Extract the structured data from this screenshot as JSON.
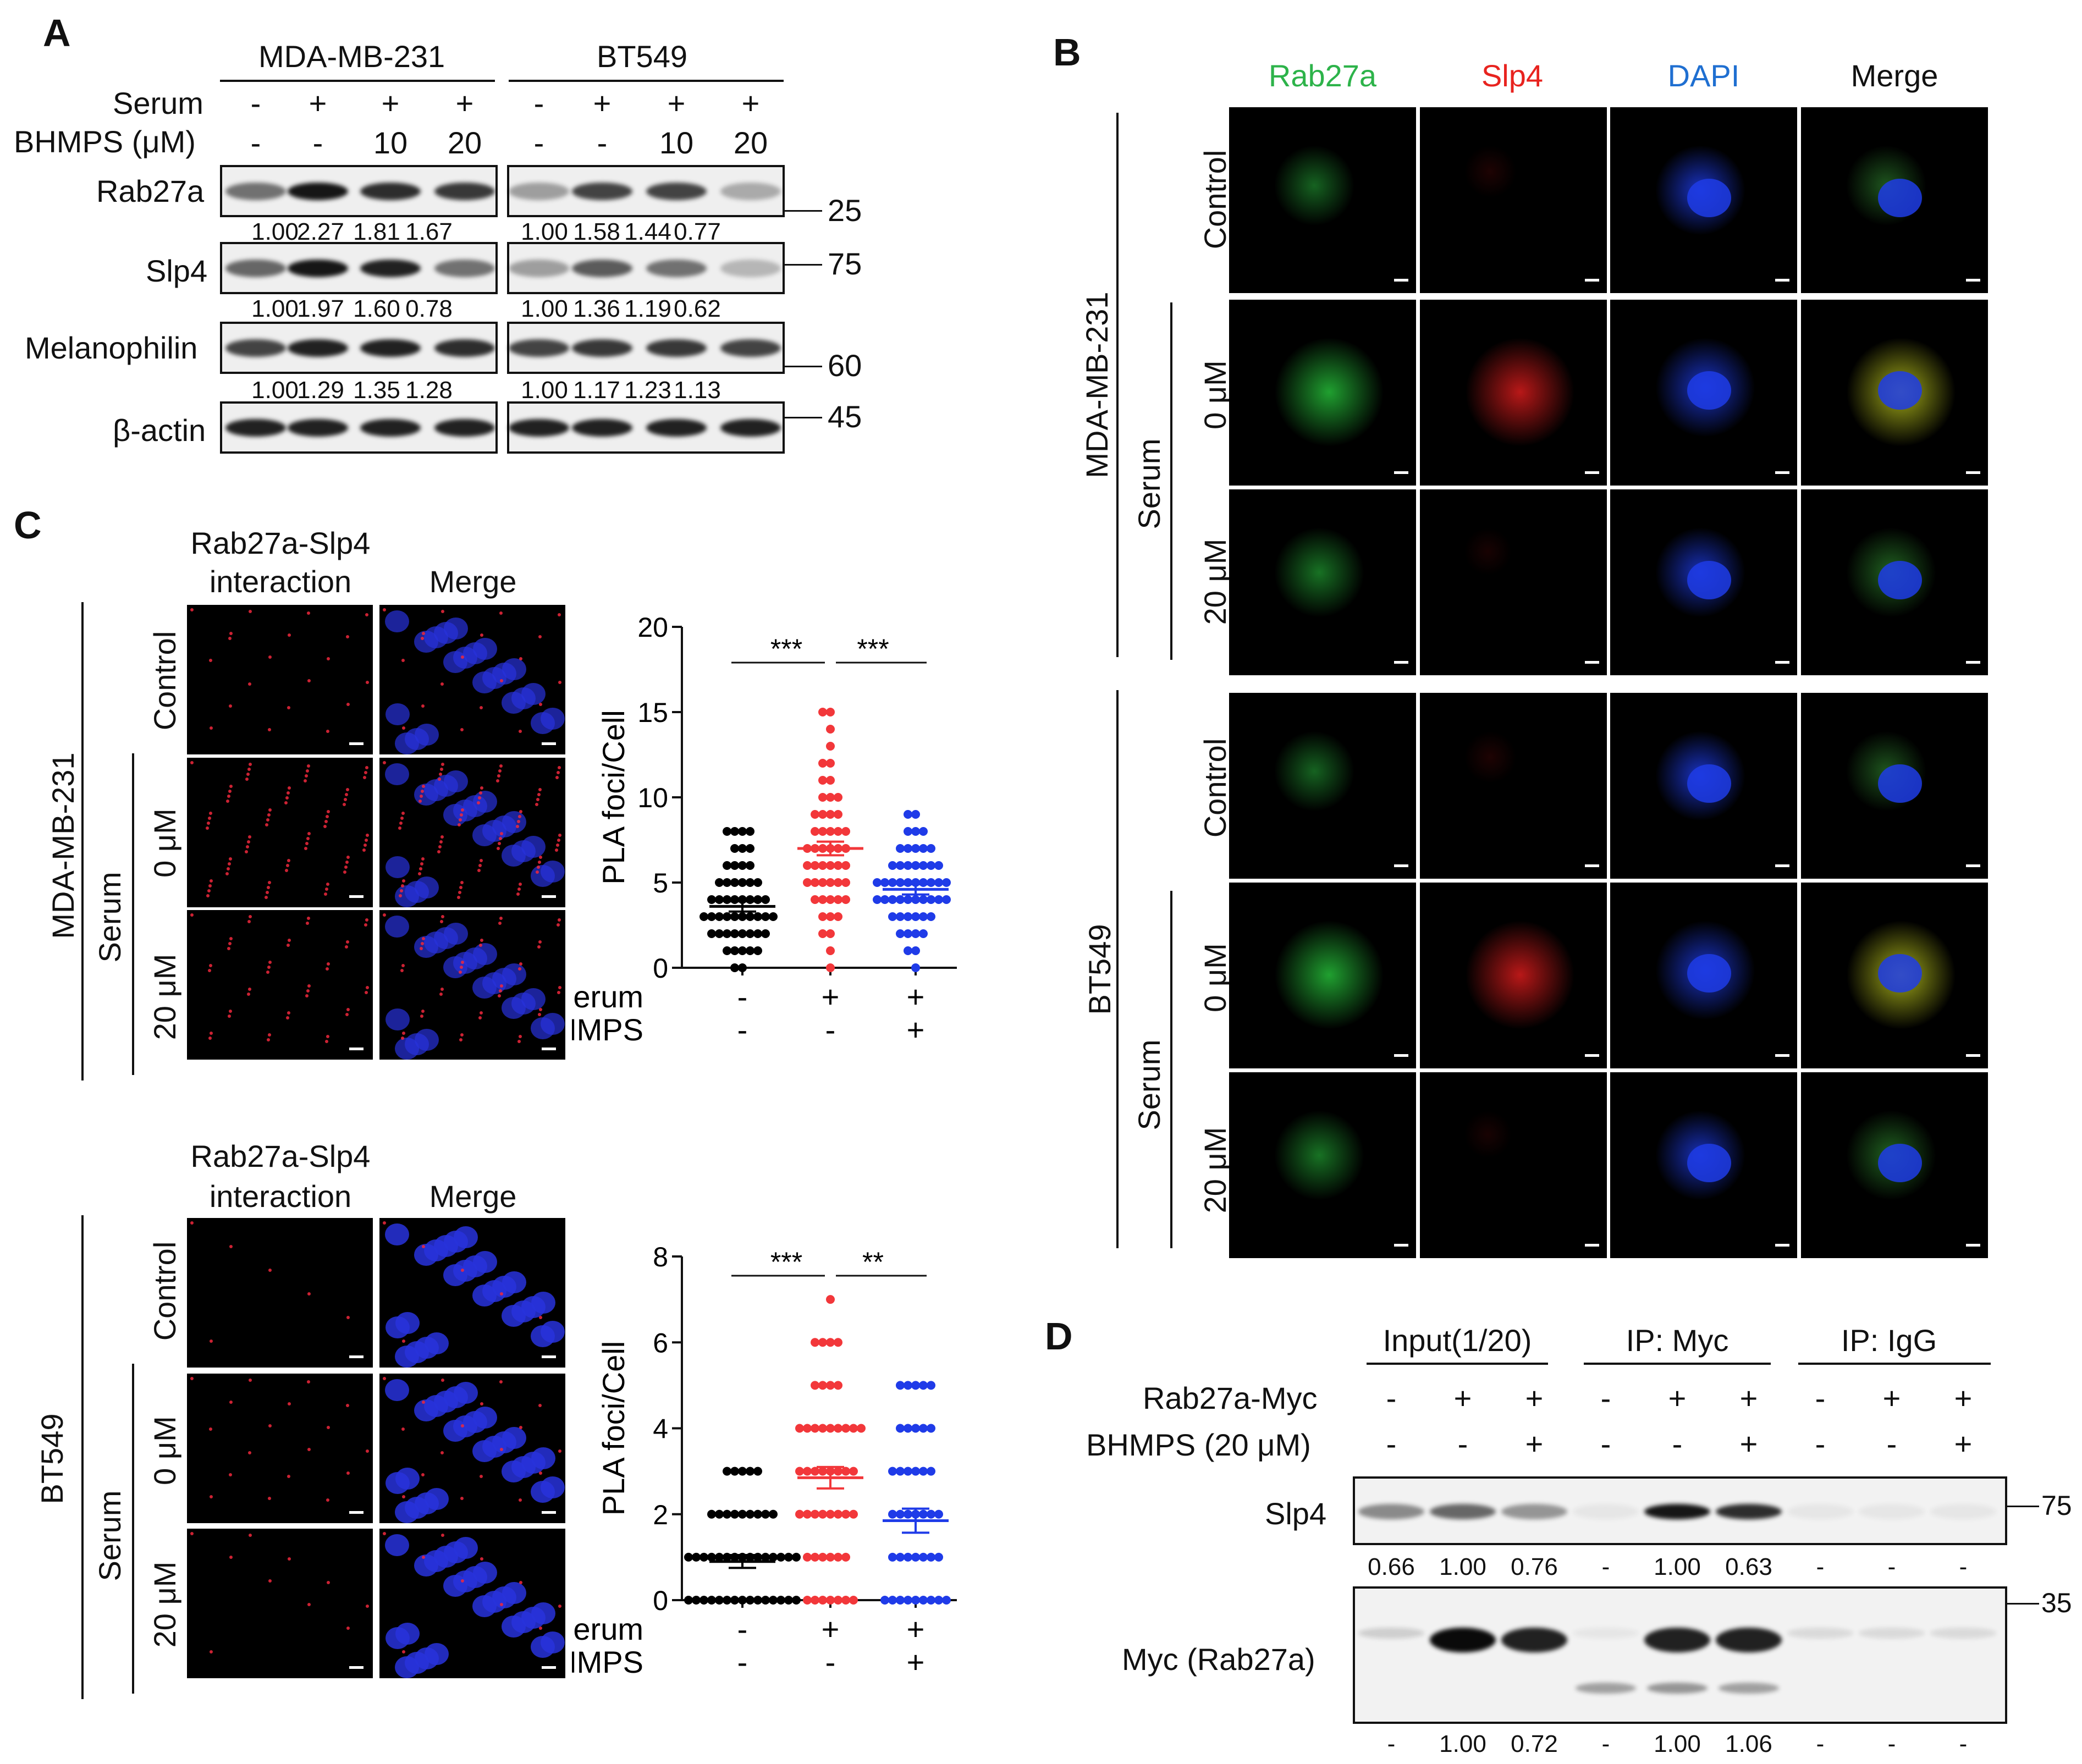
{
  "panelA": {
    "letter": "A",
    "cell_lines": [
      "MDA-MB-231",
      "BT549"
    ],
    "serum_label": "Serum",
    "bhmps_label": "BHMPS (μM)",
    "serum": [
      "-",
      "+",
      "+",
      "+",
      "-",
      "+",
      "+",
      "+"
    ],
    "bhmps": [
      "-",
      "-",
      "10",
      "20",
      "-",
      "-",
      "10",
      "20"
    ],
    "rows": [
      {
        "name": "Rab27a",
        "values": [
          "1.00",
          "2.27",
          "1.81",
          "1.67",
          "1.00",
          "1.58",
          "1.44",
          "0.77"
        ]
      },
      {
        "name": "Slp4",
        "values": [
          "1.00",
          "1.97",
          "1.60",
          "0.78",
          "1.00",
          "1.36",
          "1.19",
          "0.62"
        ]
      },
      {
        "name": "Melanophilin",
        "values": [
          "1.00",
          "1.29",
          "1.35",
          "1.28",
          "1.00",
          "1.17",
          "1.23",
          "1.13"
        ]
      },
      {
        "name": "β-actin",
        "values": []
      }
    ],
    "mw": [
      "25",
      "75",
      "60",
      "45"
    ]
  },
  "panelB": {
    "letter": "B",
    "columns": [
      "Rab27a",
      "Slp4",
      "DAPI",
      "Merge"
    ],
    "column_colors": [
      "#2db34a",
      "#e8231f",
      "#1f6fd1",
      "#111111"
    ],
    "cell_lines": [
      "MDA-MB-231",
      "BT549"
    ],
    "row_labels": [
      "Control",
      "0 μM",
      "20 μM"
    ],
    "serum_label": "Serum"
  },
  "panelC": {
    "letter": "C",
    "col1": "Rab27a-Slp4",
    "col1b": "interaction",
    "col2": "Merge",
    "cell_lines": [
      "MDA-MB-231",
      "BT549"
    ],
    "row_labels": [
      "Control",
      "0 μM",
      "20 μM"
    ],
    "serum_label": "Serum",
    "stat_top": [
      "***",
      "***"
    ],
    "stat_bottom": [
      "***",
      "**"
    ],
    "cond_labels": {
      "serum": "Serum",
      "bhmps": "BHMPS",
      "serum_vals": [
        "-",
        "+",
        "+"
      ],
      "bhmps_vals": [
        "-",
        "-",
        "+"
      ]
    }
  },
  "chart_data": [
    {
      "type": "scatter",
      "title": "",
      "ylabel": "PLA foci/Cell",
      "ylim": [
        0,
        20
      ],
      "yticks": [
        0,
        5,
        10,
        15,
        20
      ],
      "categories": [
        "Serum - / BHMPS -",
        "Serum + / BHMPS -",
        "Serum + / BHMPS +"
      ],
      "colors": [
        "#000000",
        "#f2373a",
        "#1f3be8"
      ],
      "means": [
        3.6,
        7.0,
        4.6
      ],
      "sem": [
        0.3,
        0.4,
        0.3
      ],
      "series": [
        {
          "values": [
            0,
            0,
            1,
            1,
            1,
            1,
            2,
            2,
            2,
            2,
            2,
            2,
            3,
            3,
            3,
            3,
            3,
            3,
            3,
            3,
            4,
            4,
            4,
            4,
            4,
            4,
            5,
            5,
            5,
            5,
            5,
            6,
            6,
            6,
            6,
            7,
            7,
            7,
            8,
            8,
            8,
            8,
            1,
            2,
            3,
            4,
            5,
            3,
            2,
            4
          ]
        },
        {
          "values": [
            0,
            1,
            2,
            2,
            3,
            3,
            3,
            4,
            4,
            4,
            4,
            5,
            5,
            5,
            5,
            5,
            6,
            6,
            6,
            6,
            6,
            7,
            7,
            7,
            7,
            7,
            8,
            8,
            8,
            8,
            9,
            9,
            9,
            10,
            10,
            10,
            11,
            11,
            12,
            12,
            13,
            14,
            15,
            15,
            5,
            6,
            7,
            8,
            4,
            9
          ]
        },
        {
          "values": [
            0,
            1,
            1,
            2,
            2,
            2,
            3,
            3,
            3,
            3,
            4,
            4,
            4,
            4,
            4,
            4,
            5,
            5,
            5,
            5,
            5,
            5,
            5,
            6,
            6,
            6,
            6,
            6,
            7,
            7,
            7,
            7,
            8,
            8,
            8,
            9,
            9,
            3,
            4,
            5,
            6,
            4,
            5,
            2,
            3,
            6,
            7,
            5,
            4,
            4
          ]
        }
      ]
    },
    {
      "type": "scatter",
      "title": "",
      "ylabel": "PLA foci/Cell",
      "ylim": [
        0,
        8
      ],
      "yticks": [
        0,
        2,
        4,
        6,
        8
      ],
      "categories": [
        "Serum - / BHMPS -",
        "Serum + / BHMPS -",
        "Serum + / BHMPS +"
      ],
      "colors": [
        "#000000",
        "#f2373a",
        "#1f3be8"
      ],
      "means": [
        0.9,
        2.85,
        1.85
      ],
      "sem": [
        0.15,
        0.25,
        0.28
      ],
      "series": [
        {
          "values": [
            0,
            0,
            0,
            0,
            0,
            0,
            0,
            0,
            0,
            0,
            0,
            0,
            0,
            0,
            0,
            1,
            1,
            1,
            1,
            1,
            1,
            1,
            1,
            1,
            1,
            1,
            1,
            1,
            1,
            1,
            2,
            2,
            2,
            2,
            2,
            2,
            2,
            2,
            2,
            3,
            3,
            3,
            3,
            3
          ]
        },
        {
          "values": [
            0,
            0,
            0,
            0,
            0,
            0,
            0,
            1,
            1,
            1,
            1,
            1,
            1,
            2,
            2,
            2,
            2,
            2,
            2,
            2,
            2,
            3,
            3,
            3,
            3,
            3,
            3,
            3,
            3,
            4,
            4,
            4,
            4,
            4,
            4,
            4,
            4,
            4,
            5,
            5,
            5,
            5,
            6,
            6,
            6,
            6,
            7
          ]
        },
        {
          "values": [
            0,
            0,
            0,
            0,
            0,
            0,
            0,
            0,
            0,
            1,
            1,
            1,
            1,
            1,
            1,
            1,
            2,
            2,
            2,
            2,
            2,
            2,
            2,
            3,
            3,
            3,
            3,
            3,
            3,
            4,
            4,
            4,
            4,
            4,
            5,
            5,
            5,
            5,
            5
          ]
        }
      ]
    }
  ],
  "panelD": {
    "letter": "D",
    "groups": [
      "Input(1/20)",
      "IP: Myc",
      "IP: IgG"
    ],
    "rab_label": "Rab27a-Myc",
    "bhmps_label": "BHMPS (20 μM)",
    "rab": [
      "-",
      "+",
      "+",
      "-",
      "+",
      "+",
      "-",
      "+",
      "+"
    ],
    "bhmps": [
      "-",
      "-",
      "+",
      "-",
      "-",
      "+",
      "-",
      "-",
      "+"
    ],
    "row1": "Slp4",
    "row1_vals": [
      "0.66",
      "1.00",
      "0.76",
      "-",
      "1.00",
      "0.63",
      "-",
      "-",
      "-"
    ],
    "row2": "Myc (Rab27a)",
    "row2_vals": [
      "-",
      "1.00",
      "0.72",
      "-",
      "1.00",
      "1.06",
      "-",
      "-",
      "-"
    ],
    "mw": [
      "75",
      "35"
    ]
  }
}
